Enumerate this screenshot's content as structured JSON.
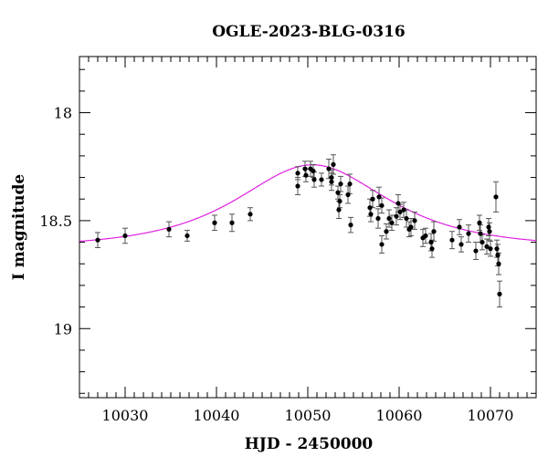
{
  "chart_data": {
    "type": "scatter",
    "title": "OGLE-2023-BLG-0316",
    "xlabel": "HJD - 2450000",
    "ylabel": "I magnitude",
    "xlim": [
      10025,
      10075
    ],
    "ylim": [
      19.32,
      17.74
    ],
    "y_inverted": true,
    "x_major_ticks": [
      10030,
      10040,
      10050,
      10060,
      10070
    ],
    "x_minor_step": 1,
    "y_major_ticks": [
      18,
      18.5,
      19
    ],
    "y_tick_labels": [
      "18",
      "18.5",
      "19"
    ],
    "y_minor_step": 0.1,
    "colors": {
      "points": "#000000",
      "error_bars": "#555555",
      "model": "#e020e0"
    },
    "grid": false,
    "series": [
      {
        "type": "scatter_errorbars",
        "x": [
          10027.0,
          10030.0,
          10034.8,
          10036.8,
          10039.8,
          10041.7,
          10043.7,
          10048.9,
          10048.9,
          10049.7,
          10049.8,
          10050.3,
          10050.6,
          10050.7,
          10051.5,
          10052.3,
          10052.6,
          10052.6,
          10052.8,
          10053.3,
          10053.4,
          10053.5,
          10053.6,
          10054.4,
          10054.6,
          10054.7,
          10056.8,
          10056.9,
          10057.1,
          10057.7,
          10057.8,
          10058.1,
          10058.1,
          10058.6,
          10058.9,
          10059.2,
          10059.7,
          10059.9,
          10060.1,
          10060.5,
          10060.8,
          10061.1,
          10061.3,
          10061.7,
          10062.6,
          10062.9,
          10063.5,
          10063.6,
          10063.8,
          10065.8,
          10066.6,
          10066.8,
          10067.6,
          10068.4,
          10068.8,
          10068.9,
          10069.1,
          10069.6,
          10069.8,
          10069.9,
          10070.0,
          10070.6,
          10070.7,
          10070.8,
          10070.9,
          10071.0
        ],
        "y": [
          18.59,
          18.57,
          18.54,
          18.57,
          18.51,
          18.51,
          18.47,
          18.28,
          18.34,
          18.26,
          18.29,
          18.26,
          18.27,
          18.31,
          18.31,
          18.26,
          18.3,
          18.32,
          18.24,
          18.37,
          18.45,
          18.41,
          18.33,
          18.38,
          18.33,
          18.52,
          18.44,
          18.47,
          18.4,
          18.49,
          18.39,
          18.43,
          18.61,
          18.55,
          18.49,
          18.51,
          18.48,
          18.42,
          18.46,
          18.45,
          18.49,
          18.54,
          18.53,
          18.5,
          18.58,
          18.57,
          18.6,
          18.63,
          18.55,
          18.59,
          18.53,
          18.61,
          18.56,
          18.64,
          18.51,
          18.56,
          18.6,
          18.62,
          18.53,
          18.55,
          18.63,
          18.39,
          18.63,
          18.66,
          18.7,
          18.84
        ],
        "err": [
          0.035,
          0.035,
          0.035,
          0.025,
          0.035,
          0.04,
          0.03,
          0.03,
          0.04,
          0.035,
          0.03,
          0.035,
          0.03,
          0.035,
          0.03,
          0.045,
          0.035,
          0.04,
          0.045,
          0.03,
          0.04,
          0.03,
          0.035,
          0.04,
          0.045,
          0.035,
          0.04,
          0.035,
          0.04,
          0.045,
          0.045,
          0.035,
          0.04,
          0.035,
          0.04,
          0.035,
          0.04,
          0.04,
          0.035,
          0.035,
          0.04,
          0.035,
          0.04,
          0.04,
          0.04,
          0.035,
          0.04,
          0.04,
          0.045,
          0.04,
          0.035,
          0.035,
          0.04,
          0.04,
          0.035,
          0.04,
          0.035,
          0.035,
          0.04,
          0.04,
          0.035,
          0.07,
          0.04,
          0.05,
          0.05,
          0.06
        ]
      },
      {
        "type": "line",
        "model": "Paczynski",
        "t0": 10050.5,
        "u0": 0.9,
        "tE": 10.5,
        "baseline_mag": 18.625
      }
    ]
  }
}
